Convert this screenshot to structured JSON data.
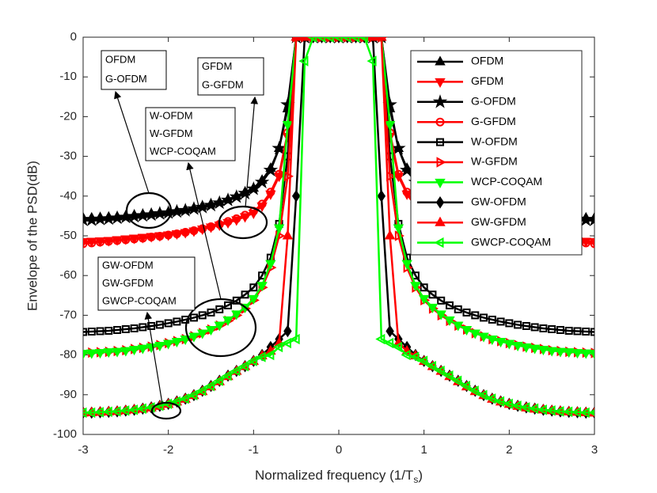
{
  "chart_data": {
    "type": "line",
    "xlabel": [
      "Normalized frequency (1/T",
      "s",
      ")"
    ],
    "ylabel": "Envelope of the PSD(dB)",
    "xlim": [
      -3,
      3
    ],
    "ylim": [
      -100,
      0
    ],
    "xticks": [
      -3,
      -2,
      -1,
      0,
      1,
      2,
      3
    ],
    "yticks": [
      0,
      -10,
      -20,
      -30,
      -40,
      -50,
      -60,
      -70,
      -80,
      -90,
      -100
    ],
    "legend": "upper right",
    "x": [
      -3,
      -2.9,
      -2.8,
      -2.7,
      -2.6,
      -2.5,
      -2.4,
      -2.3,
      -2.2,
      -2.1,
      -2,
      -1.9,
      -1.8,
      -1.7,
      -1.6,
      -1.5,
      -1.4,
      -1.3,
      -1.2,
      -1.1,
      -1,
      -0.9,
      -0.8,
      -0.7,
      -0.6,
      -0.5,
      -0.4,
      -0.3,
      -0.2,
      -0.1,
      0,
      0.1,
      0.2,
      0.3,
      0.4,
      0.5,
      0.6,
      0.7,
      0.8,
      0.9,
      1,
      1.1,
      1.2,
      1.3,
      1.4,
      1.5,
      1.6,
      1.7,
      1.8,
      1.9,
      2,
      2.1,
      2.2,
      2.3,
      2.4,
      2.5,
      2.6,
      2.7,
      2.8,
      2.9,
      3
    ],
    "series": [
      {
        "name": "OFDM",
        "color": "#000000",
        "marker": "up",
        "filled": true,
        "values": [
          -45.5,
          -45.5,
          -45.4,
          -45.3,
          -45.2,
          -45,
          -44.8,
          -44.6,
          -44.4,
          -44.2,
          -44,
          -43.7,
          -43.4,
          -43,
          -42.5,
          -42,
          -41.5,
          -40.8,
          -40,
          -39,
          -38,
          -36,
          -33,
          -28,
          -18,
          0,
          0,
          0,
          0,
          0,
          0,
          0,
          0,
          0,
          0,
          0,
          -18,
          -28,
          -33,
          -36,
          -38,
          -39,
          -40,
          -40.8,
          -41.5,
          -42,
          -42.5,
          -43,
          -43.4,
          -43.7,
          -44,
          -44.2,
          -44.4,
          -44.6,
          -44.8,
          -45,
          -45.2,
          -45.3,
          -45.4,
          -45.5,
          -45.5
        ]
      },
      {
        "name": "GFDM",
        "color": "#ff0000",
        "marker": "down",
        "filled": true,
        "values": [
          -51.5,
          -51.4,
          -51.3,
          -51.2,
          -51,
          -50.8,
          -50.6,
          -50.4,
          -50.2,
          -50,
          -49.8,
          -49.5,
          -49.2,
          -48.8,
          -48.3,
          -47.8,
          -47.3,
          -46.7,
          -46,
          -45.2,
          -44.3,
          -42.5,
          -39.5,
          -35,
          -25,
          0,
          0,
          0,
          0,
          0,
          0,
          0,
          0,
          0,
          0,
          0,
          -25,
          -35,
          -39.5,
          -42.5,
          -44.3,
          -45.2,
          -46,
          -46.7,
          -47.3,
          -47.8,
          -48.3,
          -48.8,
          -49.2,
          -49.5,
          -49.8,
          -50,
          -50.2,
          -50.4,
          -50.6,
          -50.8,
          -51,
          -51.2,
          -51.3,
          -51.4,
          -51.5
        ]
      },
      {
        "name": "G-OFDM",
        "color": "#000000",
        "marker": "star",
        "filled": true,
        "values": [
          -46,
          -46,
          -45.8,
          -45.7,
          -45.5,
          -45.3,
          -45.1,
          -44.9,
          -44.7,
          -44.4,
          -44.2,
          -43.9,
          -43.6,
          -43.2,
          -42.8,
          -42.3,
          -41.7,
          -41,
          -40.2,
          -39.3,
          -38.2,
          -36.5,
          -33.5,
          -28,
          -17,
          0,
          0,
          0,
          0,
          0,
          0,
          0,
          0,
          0,
          0,
          0,
          -17,
          -28,
          -33.5,
          -36.5,
          -38.2,
          -39.3,
          -40.2,
          -41,
          -41.7,
          -42.3,
          -42.8,
          -43.2,
          -43.6,
          -43.9,
          -44.2,
          -44.4,
          -44.7,
          -44.9,
          -45.1,
          -45.3,
          -45.5,
          -45.7,
          -45.8,
          -46,
          -46
        ]
      },
      {
        "name": "G-GFDM",
        "color": "#ff0000",
        "marker": "circle",
        "filled": false,
        "values": [
          -52,
          -51.8,
          -51.6,
          -51.4,
          -51.2,
          -51,
          -50.8,
          -50.6,
          -50.3,
          -50.1,
          -49.8,
          -49.5,
          -49.1,
          -48.7,
          -48.2,
          -47.7,
          -47.1,
          -46.4,
          -45.7,
          -44.8,
          -43.8,
          -42,
          -39,
          -34.5,
          -24,
          0,
          0,
          0,
          0,
          0,
          0,
          0,
          0,
          0,
          0,
          0,
          -24,
          -34.5,
          -39,
          -42,
          -43.8,
          -44.8,
          -45.7,
          -46.4,
          -47.1,
          -47.7,
          -48.2,
          -48.7,
          -49.1,
          -49.5,
          -49.8,
          -50.1,
          -50.3,
          -50.6,
          -50.8,
          -51,
          -51.2,
          -51.4,
          -51.6,
          -51.8,
          -52
        ]
      },
      {
        "name": "W-OFDM",
        "color": "#000000",
        "marker": "square",
        "filled": false,
        "values": [
          -74.2,
          -74.1,
          -74,
          -73.9,
          -73.7,
          -73.5,
          -73.3,
          -73,
          -72.7,
          -72.4,
          -72,
          -71.6,
          -71.1,
          -70.6,
          -70,
          -69.3,
          -68.5,
          -67.5,
          -66.3,
          -64.8,
          -63,
          -60,
          -55.5,
          -47,
          -30,
          0,
          0,
          0,
          0,
          0,
          0,
          0,
          0,
          0,
          0,
          0,
          -30,
          -47,
          -55.5,
          -60,
          -63,
          -64.8,
          -66.3,
          -67.5,
          -68.5,
          -69.3,
          -70,
          -70.6,
          -71.1,
          -71.6,
          -72,
          -72.4,
          -72.7,
          -73,
          -73.3,
          -73.5,
          -73.7,
          -73.9,
          -74,
          -74.1,
          -74.2
        ]
      },
      {
        "name": "W-GFDM",
        "color": "#ff0000",
        "marker": "right",
        "filled": false,
        "values": [
          -79.5,
          -79.4,
          -79.3,
          -79.2,
          -79,
          -78.8,
          -78.5,
          -78.2,
          -77.9,
          -77.5,
          -77,
          -76.5,
          -76,
          -75.3,
          -74.5,
          -73.6,
          -72.6,
          -71.4,
          -70,
          -68.3,
          -66.2,
          -63,
          -58,
          -50,
          -35,
          0,
          0,
          0,
          0,
          0,
          0,
          0,
          0,
          0,
          0,
          0,
          -35,
          -50,
          -58,
          -63,
          -66.2,
          -68.3,
          -70,
          -71.4,
          -72.6,
          -73.6,
          -74.5,
          -75.3,
          -76,
          -76.5,
          -77,
          -77.5,
          -77.9,
          -78.2,
          -78.5,
          -78.8,
          -79,
          -79.2,
          -79.3,
          -79.4,
          -79.5
        ]
      },
      {
        "name": "WCP-COQAM",
        "color": "#00ff00",
        "marker": "down",
        "filled": true,
        "values": [
          -79.6,
          -79.5,
          -79.4,
          -79.2,
          -79.1,
          -78.9,
          -78.6,
          -78.3,
          -78,
          -77.6,
          -77.1,
          -76.6,
          -76,
          -75.3,
          -74.5,
          -73.6,
          -72.5,
          -71.2,
          -69.7,
          -68,
          -65.8,
          -62.5,
          -57,
          -48,
          -22,
          0,
          0,
          0,
          0,
          0,
          0,
          0,
          0,
          0,
          0,
          0,
          -22,
          -48,
          -57,
          -62.5,
          -65.8,
          -68,
          -69.7,
          -71.2,
          -72.5,
          -73.6,
          -74.5,
          -75.3,
          -76,
          -76.6,
          -77.1,
          -77.6,
          -78,
          -78.3,
          -78.6,
          -78.9,
          -79.1,
          -79.2,
          -79.4,
          -79.5,
          -79.6
        ]
      },
      {
        "name": "GW-OFDM",
        "color": "#000000",
        "marker": "diamond",
        "filled": true,
        "values": [
          -94.5,
          -94.5,
          -94.4,
          -94.3,
          -94.2,
          -94,
          -93.8,
          -93.5,
          -93.2,
          -92.8,
          -92.3,
          -91.7,
          -91,
          -90.1,
          -89,
          -87.8,
          -86.5,
          -85.2,
          -84,
          -82.8,
          -81.5,
          -80,
          -78,
          -76,
          -74,
          -40,
          0,
          0,
          0,
          0,
          0,
          0,
          0,
          0,
          0,
          -40,
          -74,
          -76,
          -78,
          -80,
          -81.5,
          -82.8,
          -84,
          -85.2,
          -86.5,
          -87.8,
          -89,
          -90.1,
          -91,
          -91.7,
          -92.3,
          -92.8,
          -93.2,
          -93.5,
          -93.8,
          -94,
          -94.2,
          -94.3,
          -94.4,
          -94.5,
          -94.5
        ]
      },
      {
        "name": "GW-GFDM",
        "color": "#ff0000",
        "marker": "up",
        "filled": true,
        "values": [
          -94.6,
          -94.5,
          -94.4,
          -94.3,
          -94.2,
          -94,
          -93.8,
          -93.6,
          -93.3,
          -92.9,
          -92.4,
          -91.8,
          -91.1,
          -90.2,
          -89.2,
          -88,
          -86.7,
          -85.4,
          -84.1,
          -82.9,
          -81.6,
          -80.2,
          -79,
          -77,
          -50,
          0,
          0,
          0,
          0,
          0,
          0,
          0,
          0,
          0,
          0,
          0,
          -50,
          -77,
          -79,
          -80.2,
          -81.6,
          -82.9,
          -84.1,
          -85.4,
          -86.7,
          -88,
          -89.2,
          -90.2,
          -91.1,
          -91.8,
          -92.4,
          -92.9,
          -93.3,
          -93.6,
          -93.8,
          -94,
          -94.2,
          -94.3,
          -94.4,
          -94.5,
          -94.6
        ]
      },
      {
        "name": "GWCP-COQAM",
        "color": "#00ff00",
        "marker": "left",
        "filled": false,
        "values": [
          -94.5,
          -94.5,
          -94.4,
          -94.3,
          -94.2,
          -94,
          -93.8,
          -93.5,
          -93.2,
          -92.8,
          -92.3,
          -91.7,
          -91,
          -90.1,
          -89,
          -87.8,
          -86.5,
          -85.2,
          -84,
          -82.8,
          -81.5,
          -80.5,
          -80,
          -78,
          -77,
          -76,
          -6,
          0,
          0,
          0,
          0,
          0,
          0,
          0,
          -6,
          -76,
          -77,
          -78,
          -80,
          -80.5,
          -81.5,
          -82.8,
          -84,
          -85.2,
          -86.5,
          -87.8,
          -89,
          -90.1,
          -91,
          -91.7,
          -92.3,
          -92.8,
          -93.2,
          -93.5,
          -93.8,
          -94,
          -94.2,
          -94.3,
          -94.4,
          -94.5,
          -94.5
        ]
      }
    ],
    "annotations": [
      {
        "lines": [
          "OFDM",
          "G-OFDM"
        ]
      },
      {
        "lines": [
          "GFDM",
          "G-GFDM"
        ]
      },
      {
        "lines": [
          "W-OFDM",
          "W-GFDM",
          "WCP-COQAM"
        ]
      },
      {
        "lines": [
          "GW-OFDM",
          "GW-GFDM",
          "GWCP-COQAM"
        ]
      }
    ]
  }
}
